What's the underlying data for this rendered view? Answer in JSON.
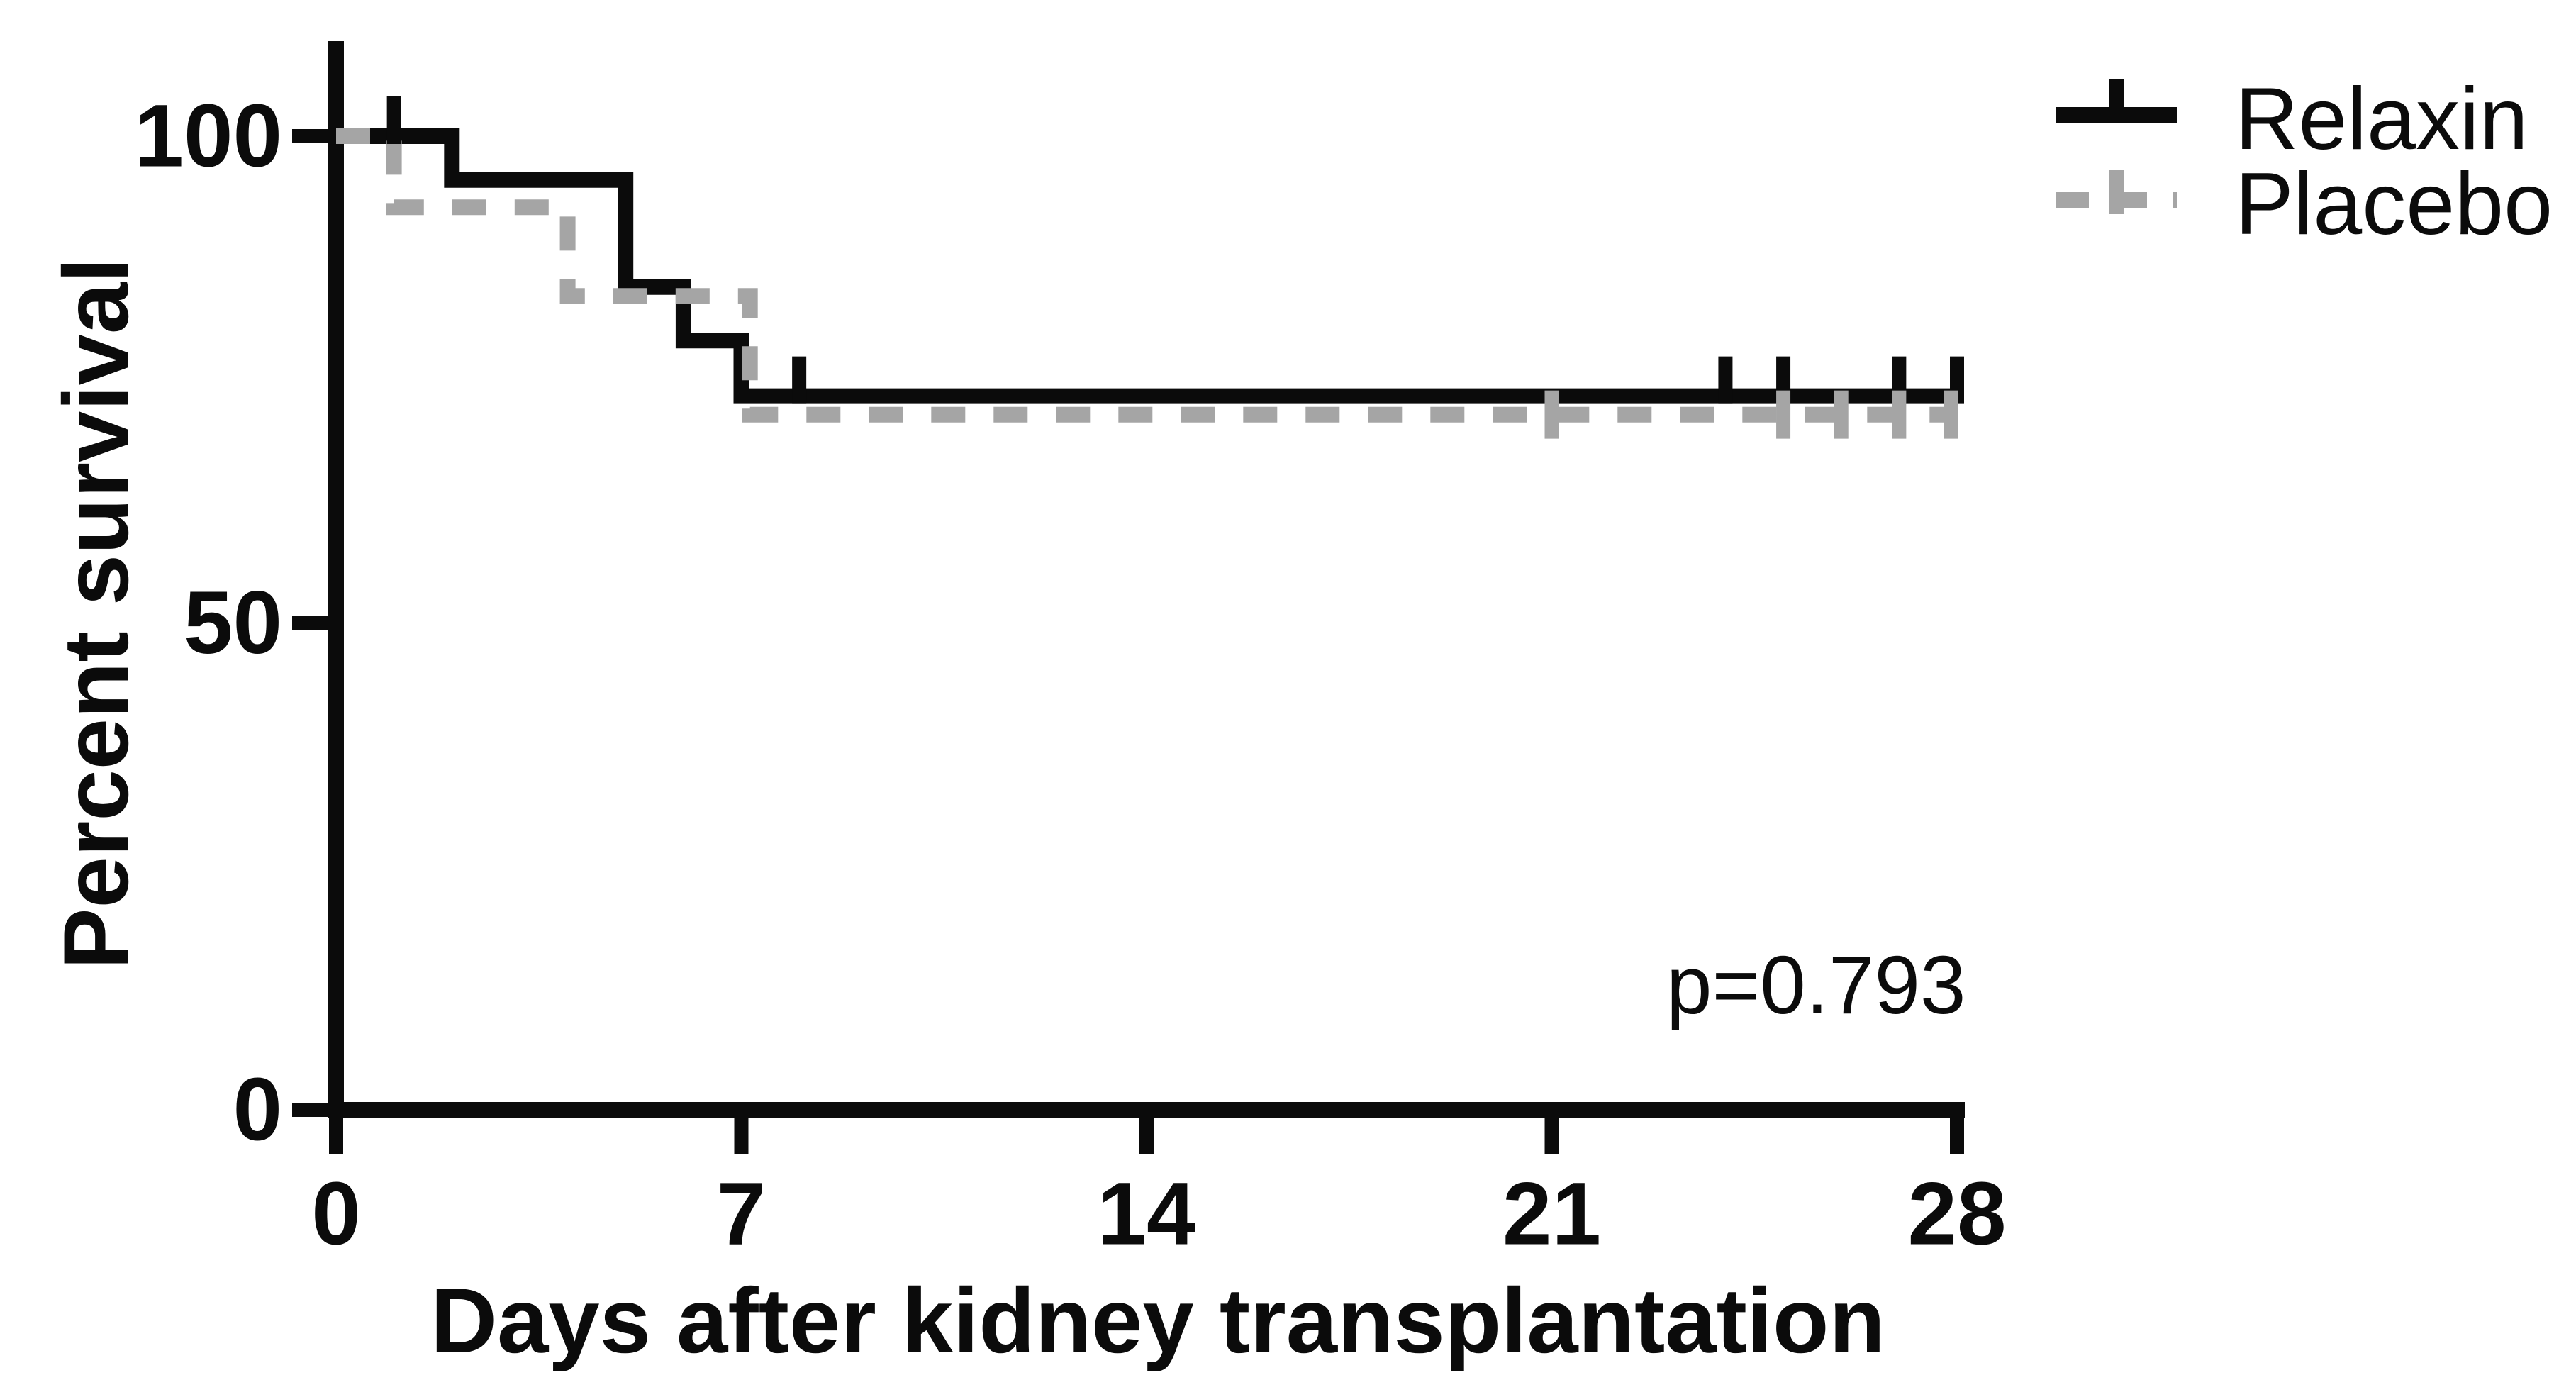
{
  "figure": {
    "background_color": "#ffffff",
    "text_color": "#0b0b0b",
    "p_value_label": "p=0.793"
  },
  "chart_data": {
    "type": "line",
    "subtype": "kaplan_meier_step_survival",
    "title": "",
    "xlabel": "Days after kidney transplantation",
    "ylabel": "Percent survival",
    "xlim": [
      0,
      28
    ],
    "ylim": [
      0,
      100
    ],
    "x_tick_labels": [
      "0",
      "7",
      "14",
      "21",
      "28"
    ],
    "x_tick_values": [
      0,
      7,
      14,
      21,
      28
    ],
    "y_tick_labels": [
      "100",
      "50",
      "0"
    ],
    "y_tick_values": [
      100,
      50,
      0
    ],
    "grid": false,
    "legend": {
      "position": "top-right",
      "entries": [
        "Relaxin",
        "Placebo"
      ]
    },
    "annotation": {
      "text": "p=0.793",
      "x_day": 23,
      "y_percent": 12.5
    },
    "series": [
      {
        "name": "Relaxin",
        "color": "#0b0b0b",
        "line_style": "solid",
        "steps_day_percent": [
          [
            0,
            100
          ],
          [
            2,
            100
          ],
          [
            2,
            95.5
          ],
          [
            5,
            95.5
          ],
          [
            5,
            84.5
          ],
          [
            6,
            84.5
          ],
          [
            6,
            79
          ],
          [
            7,
            79
          ],
          [
            7,
            73.3
          ],
          [
            28,
            73.3
          ]
        ],
        "censor_marks_day_percent": [
          [
            1,
            100
          ],
          [
            8,
            73.3
          ],
          [
            24,
            73.3
          ],
          [
            25,
            73.3
          ],
          [
            27,
            73.3
          ],
          [
            28,
            73.3
          ]
        ]
      },
      {
        "name": "Placebo",
        "color": "#a5a5a5",
        "line_style": "dashed",
        "steps_day_percent": [
          [
            0,
            100
          ],
          [
            1,
            100
          ],
          [
            1,
            92.7
          ],
          [
            4,
            92.7
          ],
          [
            4,
            83.6
          ],
          [
            7.15,
            83.6
          ],
          [
            7.15,
            71.4
          ],
          [
            27.9,
            71.4
          ]
        ],
        "censor_marks_day_percent": [
          [
            21,
            71.4
          ],
          [
            25,
            71.4
          ],
          [
            26,
            71.4
          ],
          [
            27,
            71.4
          ],
          [
            27.9,
            71.4
          ]
        ]
      }
    ]
  }
}
